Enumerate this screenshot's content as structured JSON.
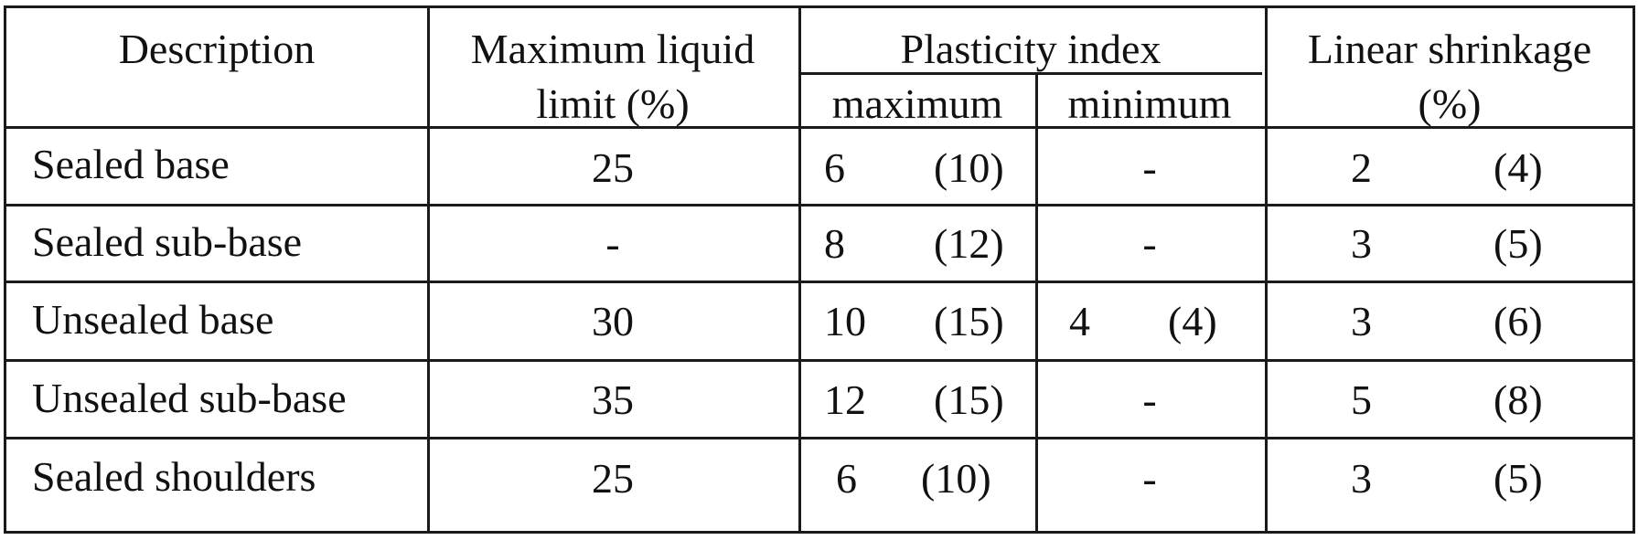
{
  "headers": {
    "description": "Description",
    "liquid_limit_line1": "Maximum liquid",
    "liquid_limit_line2": "limit (%)",
    "plasticity_index": "Plasticity index",
    "pi_maximum": "maximum",
    "pi_minimum": "minimum",
    "linear_shrinkage_line1": "Linear shrinkage",
    "linear_shrinkage_line2": "(%)"
  },
  "rows": [
    {
      "description": "Sealed base",
      "liquid_limit": "25",
      "pi_max": "6",
      "pi_max_alt": "(10)",
      "pi_min": "-",
      "pi_min_alt": "",
      "shrinkage": "2",
      "shrinkage_alt": "(4)"
    },
    {
      "description": "Sealed sub-base",
      "liquid_limit": "-",
      "pi_max": "8",
      "pi_max_alt": "(12)",
      "pi_min": "-",
      "pi_min_alt": "",
      "shrinkage": "3",
      "shrinkage_alt": "(5)"
    },
    {
      "description": "Unsealed base",
      "liquid_limit": "30",
      "pi_max": "10",
      "pi_max_alt": "(15)",
      "pi_min": "4",
      "pi_min_alt": "(4)",
      "shrinkage": "3",
      "shrinkage_alt": "(6)"
    },
    {
      "description": "Unsealed sub-base",
      "liquid_limit": "35",
      "pi_max": "12",
      "pi_max_alt": "(15)",
      "pi_min": "-",
      "pi_min_alt": "",
      "shrinkage": "5",
      "shrinkage_alt": "(8)"
    },
    {
      "description": "Sealed shoulders",
      "liquid_limit": "25",
      "pi_max": "6",
      "pi_max_alt": "(10)",
      "pi_min": "-",
      "pi_min_alt": "",
      "shrinkage": "3",
      "shrinkage_alt": "(5)"
    }
  ]
}
